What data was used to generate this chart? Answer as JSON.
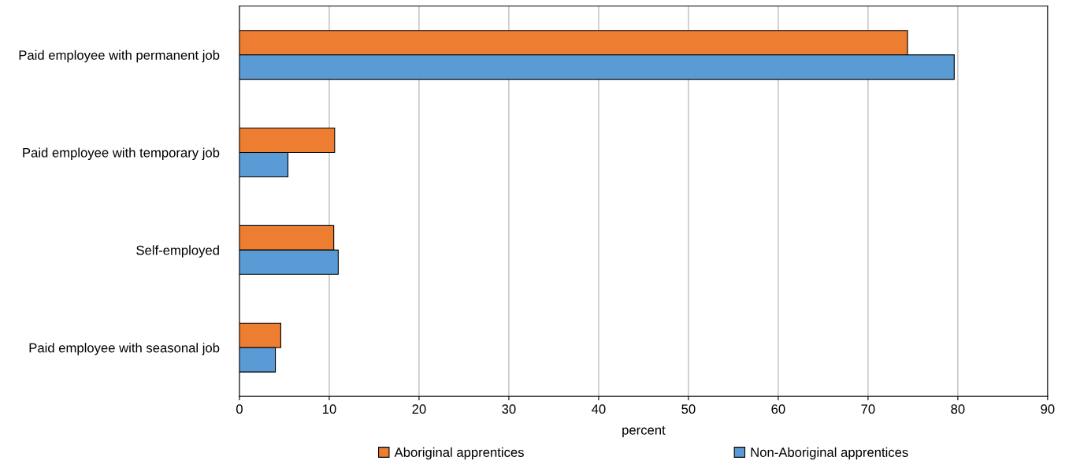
{
  "chart_data": {
    "type": "bar",
    "orientation": "horizontal",
    "xlabel": "percent",
    "categories": [
      "Paid employee with permanent job",
      "Paid employee with temporary job",
      "Self-employed",
      "Paid employee with seasonal job"
    ],
    "series": [
      {
        "name": "Aboriginal apprentices",
        "color": "#ed7d31",
        "values": [
          74.4,
          10.6,
          10.5,
          4.6
        ]
      },
      {
        "name": "Non-Aboriginal apprentices",
        "color": "#5b9bd5",
        "values": [
          79.6,
          5.4,
          11.0,
          4.0
        ]
      }
    ],
    "xlim": [
      0,
      90
    ],
    "xticks": [
      0,
      10,
      20,
      30,
      40,
      50,
      60,
      70,
      80,
      90
    ],
    "grid": "x",
    "legend": "bottom"
  }
}
